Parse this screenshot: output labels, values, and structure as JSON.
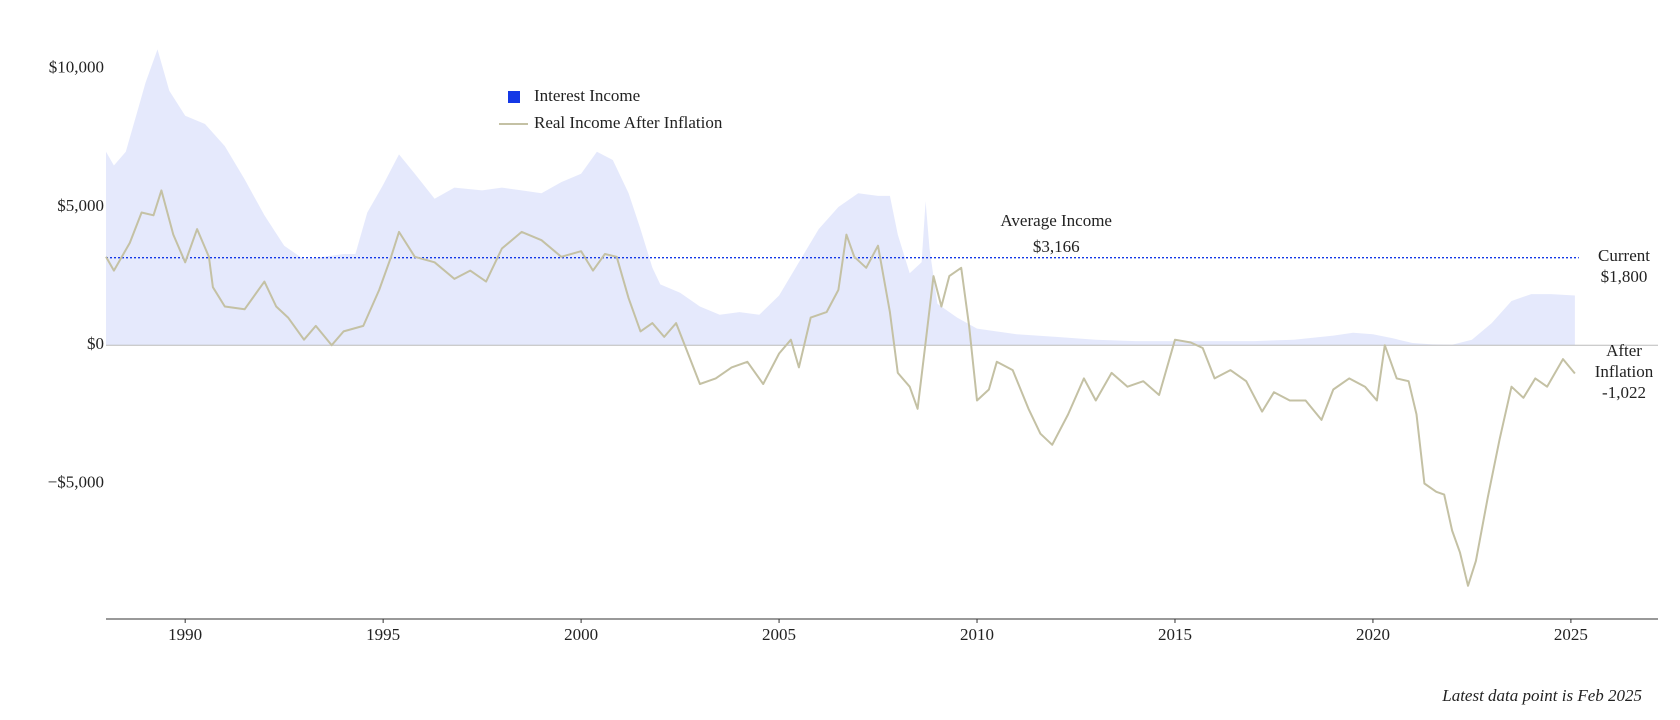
{
  "chart_data": {
    "type": "area_line",
    "xlim": [
      1988,
      2027.2
    ],
    "xticks": [
      1990,
      1995,
      2000,
      2005,
      2010,
      2015,
      2020,
      2025
    ],
    "ylim": [
      -9900,
      11400
    ],
    "yticks": [
      {
        "value": -5000,
        "label": "−$5,000"
      },
      {
        "value": 0,
        "label": "$0"
      },
      {
        "value": 5000,
        "label": "$5,000"
      },
      {
        "value": 10000,
        "label": "$10,000"
      }
    ],
    "series": [
      {
        "name": "Interest Income",
        "color": "#1438e6",
        "kind": "area",
        "x": [
          1988.0,
          1988.2,
          1988.5,
          1988.8,
          1989.0,
          1989.3,
          1989.6,
          1990.0,
          1990.5,
          1991.0,
          1991.5,
          1992.0,
          1992.5,
          1993.0,
          1993.5,
          1994.0,
          1994.3,
          1994.6,
          1995.0,
          1995.4,
          1995.8,
          1996.3,
          1996.8,
          1997.5,
          1998.0,
          1998.5,
          1999.0,
          1999.5,
          2000.0,
          2000.4,
          2000.8,
          2001.2,
          2001.5,
          2001.8,
          2002.0,
          2002.5,
          2003.0,
          2003.5,
          2004.0,
          2004.5,
          2005.0,
          2005.5,
          2006.0,
          2006.5,
          2007.0,
          2007.5,
          2007.8,
          2008.0,
          2008.3,
          2008.6,
          2008.7,
          2008.8,
          2009.0,
          2009.5,
          2010.0,
          2011.0,
          2012.0,
          2013.0,
          2014.0,
          2015.0,
          2016.0,
          2017.0,
          2018.0,
          2019.0,
          2019.5,
          2020.0,
          2020.5,
          2021.0,
          2021.5,
          2022.0,
          2022.5,
          2023.0,
          2023.5,
          2024.0,
          2024.5,
          2025.1
        ],
        "values": [
          7000,
          6500,
          7000,
          8500,
          9500,
          10700,
          9200,
          8300,
          8000,
          7200,
          6000,
          4700,
          3600,
          3100,
          3200,
          3300,
          3300,
          4800,
          5800,
          6900,
          6200,
          5300,
          5700,
          5600,
          5700,
          5600,
          5500,
          5900,
          6200,
          7000,
          6700,
          5500,
          4200,
          2800,
          2200,
          1900,
          1400,
          1100,
          1200,
          1100,
          1800,
          3000,
          4200,
          5000,
          5500,
          5400,
          5400,
          4000,
          2600,
          3000,
          5200,
          3500,
          1500,
          1000,
          600,
          400,
          300,
          200,
          150,
          150,
          150,
          150,
          200,
          350,
          450,
          400,
          250,
          80,
          30,
          20,
          200,
          800,
          1600,
          1850,
          1850,
          1800
        ]
      },
      {
        "name": "Real Income After Inflation",
        "color": "#c4c1a4",
        "kind": "line",
        "x": [
          1988.0,
          1988.2,
          1988.6,
          1988.9,
          1989.2,
          1989.4,
          1989.7,
          1990.0,
          1990.3,
          1990.6,
          1990.7,
          1991.0,
          1991.5,
          1992.0,
          1992.3,
          1992.6,
          1993.0,
          1993.3,
          1993.7,
          1994.0,
          1994.5,
          1994.9,
          1995.2,
          1995.4,
          1995.8,
          1996.3,
          1996.8,
          1997.2,
          1997.6,
          1998.0,
          1998.5,
          1999.0,
          1999.5,
          2000.0,
          2000.3,
          2000.6,
          2000.9,
          2001.2,
          2001.5,
          2001.8,
          2002.1,
          2002.4,
          2002.7,
          2003.0,
          2003.4,
          2003.8,
          2004.2,
          2004.6,
          2005.0,
          2005.3,
          2005.5,
          2005.8,
          2006.2,
          2006.5,
          2006.7,
          2006.9,
          2007.2,
          2007.5,
          2007.8,
          2008.0,
          2008.3,
          2008.5,
          2008.7,
          2008.9,
          2009.1,
          2009.3,
          2009.6,
          2009.8,
          2010.0,
          2010.3,
          2010.5,
          2010.9,
          2011.3,
          2011.6,
          2011.9,
          2012.3,
          2012.7,
          2013.0,
          2013.4,
          2013.8,
          2014.2,
          2014.6,
          2015.0,
          2015.4,
          2015.7,
          2016.0,
          2016.4,
          2016.8,
          2017.2,
          2017.5,
          2017.9,
          2018.3,
          2018.7,
          2019.0,
          2019.4,
          2019.8,
          2020.1,
          2020.3,
          2020.6,
          2020.9,
          2021.1,
          2021.3,
          2021.6,
          2021.8,
          2022.0,
          2022.2,
          2022.4,
          2022.6,
          2022.9,
          2023.2,
          2023.5,
          2023.8,
          2024.1,
          2024.4,
          2024.8,
          2025.1
        ],
        "values": [
          3200,
          2700,
          3700,
          4800,
          4700,
          5600,
          4000,
          3000,
          4200,
          3200,
          2100,
          1400,
          1300,
          2300,
          1400,
          1000,
          200,
          700,
          0,
          500,
          700,
          2000,
          3200,
          4100,
          3200,
          3000,
          2400,
          2700,
          2300,
          3500,
          4100,
          3800,
          3200,
          3400,
          2700,
          3300,
          3200,
          1700,
          500,
          800,
          300,
          800,
          -300,
          -1400,
          -1200,
          -800,
          -600,
          -1400,
          -300,
          200,
          -800,
          1000,
          1200,
          2000,
          4000,
          3200,
          2800,
          3600,
          1200,
          -1000,
          -1500,
          -2300,
          100,
          2500,
          1400,
          2500,
          2800,
          700,
          -2000,
          -1600,
          -600,
          -900,
          -2300,
          -3200,
          -3600,
          -2500,
          -1200,
          -2000,
          -1000,
          -1500,
          -1300,
          -1800,
          200,
          100,
          -100,
          -1200,
          -900,
          -1300,
          -2400,
          -1700,
          -2000,
          -2000,
          -2700,
          -1600,
          -1200,
          -1500,
          -2000,
          0,
          -1200,
          -1300,
          -2500,
          -5000,
          -5300,
          -5400,
          -6700,
          -7500,
          -8700,
          -7800,
          -5500,
          -3400,
          -1500,
          -1900,
          -1200,
          -1500,
          -500,
          -1022
        ]
      }
    ],
    "average": {
      "label": "Average Income",
      "value_label": "$3,166",
      "value": 3166
    },
    "current": {
      "label": "Current",
      "value_label": "$1,800",
      "value": 1800
    },
    "after_inflation": {
      "label_lines": [
        "After",
        "Inflation"
      ],
      "value_label": "-1,022",
      "value": -1022
    },
    "note": "Latest data point is Feb 2025",
    "legend": "top-left"
  }
}
